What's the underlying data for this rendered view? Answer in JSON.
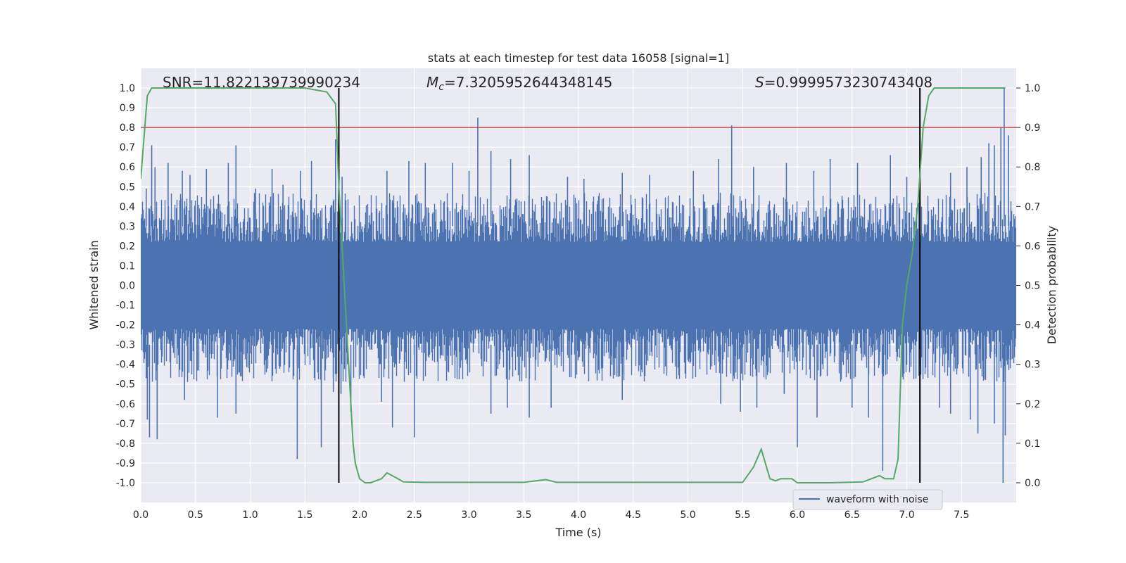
{
  "chart_data": {
    "type": "line",
    "title": "stats at each timestep for test data 16058 [signal=1]",
    "xlabel": "Time (s)",
    "ylabel_left": "Whitened strain",
    "ylabel_right": "Detection probability",
    "xlim": [
      0.0,
      8.0
    ],
    "ylim_left": [
      -1.1,
      1.1
    ],
    "ylim_right": [
      -0.05,
      1.05
    ],
    "x_ticks": [
      "0.0",
      "0.5",
      "1.0",
      "1.5",
      "2.0",
      "2.5",
      "3.0",
      "3.5",
      "4.0",
      "4.5",
      "5.0",
      "5.5",
      "6.0",
      "6.5",
      "7.0",
      "7.5"
    ],
    "y_ticks_left": [
      "1.0",
      "0.9",
      "0.8",
      "0.7",
      "0.6",
      "0.5",
      "0.4",
      "0.3",
      "0.2",
      "0.1",
      "0.0",
      "-0.1",
      "-0.2",
      "-0.3",
      "-0.4",
      "-0.5",
      "-0.6",
      "-0.7",
      "-0.8",
      "-0.9",
      "-1.0"
    ],
    "y_ticks_right": [
      "1.0",
      "0.9",
      "0.8",
      "0.7",
      "0.6",
      "0.5",
      "0.4",
      "0.3",
      "0.2",
      "0.1",
      "0.0"
    ],
    "grid": true,
    "legend_position": "lower-right",
    "annotations": {
      "snr": "SNR=11.822139739990234",
      "mc_prefix": "M",
      "mc_sub": "c",
      "mc_value": "=7.3205952644348145",
      "s_prefix": "S",
      "s_value": "=0.9999573230743408"
    },
    "threshold": {
      "value_right": 0.9,
      "color": "#c44e52"
    },
    "vertical_markers": [
      1.81,
      7.12
    ],
    "series": [
      {
        "name": "waveform with noise",
        "color": "#4c72b0",
        "axis": "left",
        "envelope": {
          "typical_max": 0.42,
          "typical_min": -0.45
        },
        "spikes_up": [
          [
            0.05,
            0.49
          ],
          [
            0.1,
            0.71
          ],
          [
            0.13,
            0.6
          ],
          [
            0.25,
            0.62
          ],
          [
            0.38,
            0.58
          ],
          [
            0.45,
            0.56
          ],
          [
            0.6,
            0.59
          ],
          [
            0.8,
            0.62
          ],
          [
            0.87,
            0.71
          ],
          [
            1.05,
            0.49
          ],
          [
            1.2,
            0.59
          ],
          [
            1.3,
            0.51
          ],
          [
            1.46,
            0.58
          ],
          [
            1.56,
            0.63
          ],
          [
            1.78,
            0.74
          ],
          [
            1.84,
            0.55
          ],
          [
            2.25,
            0.58
          ],
          [
            2.45,
            0.63
          ],
          [
            2.6,
            0.62
          ],
          [
            2.85,
            0.62
          ],
          [
            3.0,
            0.58
          ],
          [
            3.08,
            0.85
          ],
          [
            3.2,
            0.68
          ],
          [
            3.38,
            0.64
          ],
          [
            3.55,
            0.66
          ],
          [
            3.9,
            0.55
          ],
          [
            4.05,
            0.54
          ],
          [
            4.4,
            0.57
          ],
          [
            4.65,
            0.56
          ],
          [
            5.05,
            0.58
          ],
          [
            5.28,
            0.64
          ],
          [
            5.4,
            0.81
          ],
          [
            5.6,
            0.6
          ],
          [
            5.9,
            0.62
          ],
          [
            6.15,
            0.58
          ],
          [
            6.3,
            0.64
          ],
          [
            6.55,
            0.62
          ],
          [
            6.85,
            0.66
          ],
          [
            7.0,
            0.55
          ],
          [
            7.4,
            0.57
          ],
          [
            7.55,
            0.6
          ],
          [
            7.68,
            0.65
          ],
          [
            7.75,
            0.72
          ],
          [
            7.8,
            0.71
          ],
          [
            7.86,
            0.8
          ],
          [
            7.89,
            1.0
          ],
          [
            7.93,
            0.76
          ]
        ],
        "spikes_down": [
          [
            0.05,
            -0.47
          ],
          [
            0.06,
            -0.68
          ],
          [
            0.08,
            -0.77
          ],
          [
            0.15,
            -0.78
          ],
          [
            0.4,
            -0.58
          ],
          [
            0.7,
            -0.67
          ],
          [
            0.87,
            -0.65
          ],
          [
            1.43,
            -0.88
          ],
          [
            1.65,
            -0.82
          ],
          [
            1.76,
            -0.54
          ],
          [
            1.83,
            -0.55
          ],
          [
            1.92,
            -0.64
          ],
          [
            2.2,
            -0.59
          ],
          [
            2.3,
            -0.72
          ],
          [
            2.5,
            -0.77
          ],
          [
            3.2,
            -0.65
          ],
          [
            3.35,
            -0.62
          ],
          [
            3.55,
            -0.67
          ],
          [
            3.75,
            -0.62
          ],
          [
            4.4,
            -0.58
          ],
          [
            5.3,
            -0.6
          ],
          [
            5.48,
            -0.64
          ],
          [
            5.63,
            -0.62
          ],
          [
            5.88,
            -0.55
          ],
          [
            6.0,
            -0.82
          ],
          [
            6.18,
            -0.67
          ],
          [
            6.5,
            -0.62
          ],
          [
            6.65,
            -0.67
          ],
          [
            6.78,
            -0.94
          ],
          [
            7.3,
            -0.62
          ],
          [
            7.4,
            -0.65
          ],
          [
            7.58,
            -0.68
          ],
          [
            7.65,
            -0.75
          ],
          [
            7.8,
            -0.7
          ],
          [
            7.88,
            -1.0
          ],
          [
            7.9,
            -0.76
          ]
        ]
      },
      {
        "name": "detection probability",
        "color": "#55a868",
        "axis": "right",
        "x": [
          0.0,
          0.06,
          0.1,
          0.2,
          0.6,
          1.0,
          1.5,
          1.7,
          1.78,
          1.81,
          1.86,
          1.9,
          1.94,
          1.96,
          2.0,
          2.05,
          2.1,
          2.2,
          2.25,
          2.35,
          2.4,
          2.6,
          3.0,
          3.5,
          3.7,
          3.8,
          4.0,
          4.5,
          5.0,
          5.5,
          5.6,
          5.67,
          5.75,
          5.8,
          5.85,
          5.95,
          6.0,
          6.3,
          6.6,
          6.75,
          6.8,
          6.88,
          6.92,
          6.96,
          7.0,
          7.05,
          7.1,
          7.15,
          7.2,
          7.25,
          7.3,
          7.9
        ],
        "y": [
          0.77,
          0.98,
          1.0,
          1.0,
          1.0,
          1.0,
          1.0,
          0.99,
          0.96,
          0.75,
          0.5,
          0.3,
          0.1,
          0.05,
          0.01,
          0.0,
          0.0,
          0.01,
          0.025,
          0.01,
          0.002,
          0.001,
          0.001,
          0.001,
          0.008,
          0.001,
          0.001,
          0.001,
          0.001,
          0.001,
          0.04,
          0.085,
          0.01,
          0.005,
          0.01,
          0.01,
          0.0,
          0.0,
          0.002,
          0.018,
          0.01,
          0.01,
          0.06,
          0.4,
          0.5,
          0.58,
          0.7,
          0.9,
          0.98,
          1.0,
          1.0,
          1.0
        ]
      }
    ]
  }
}
